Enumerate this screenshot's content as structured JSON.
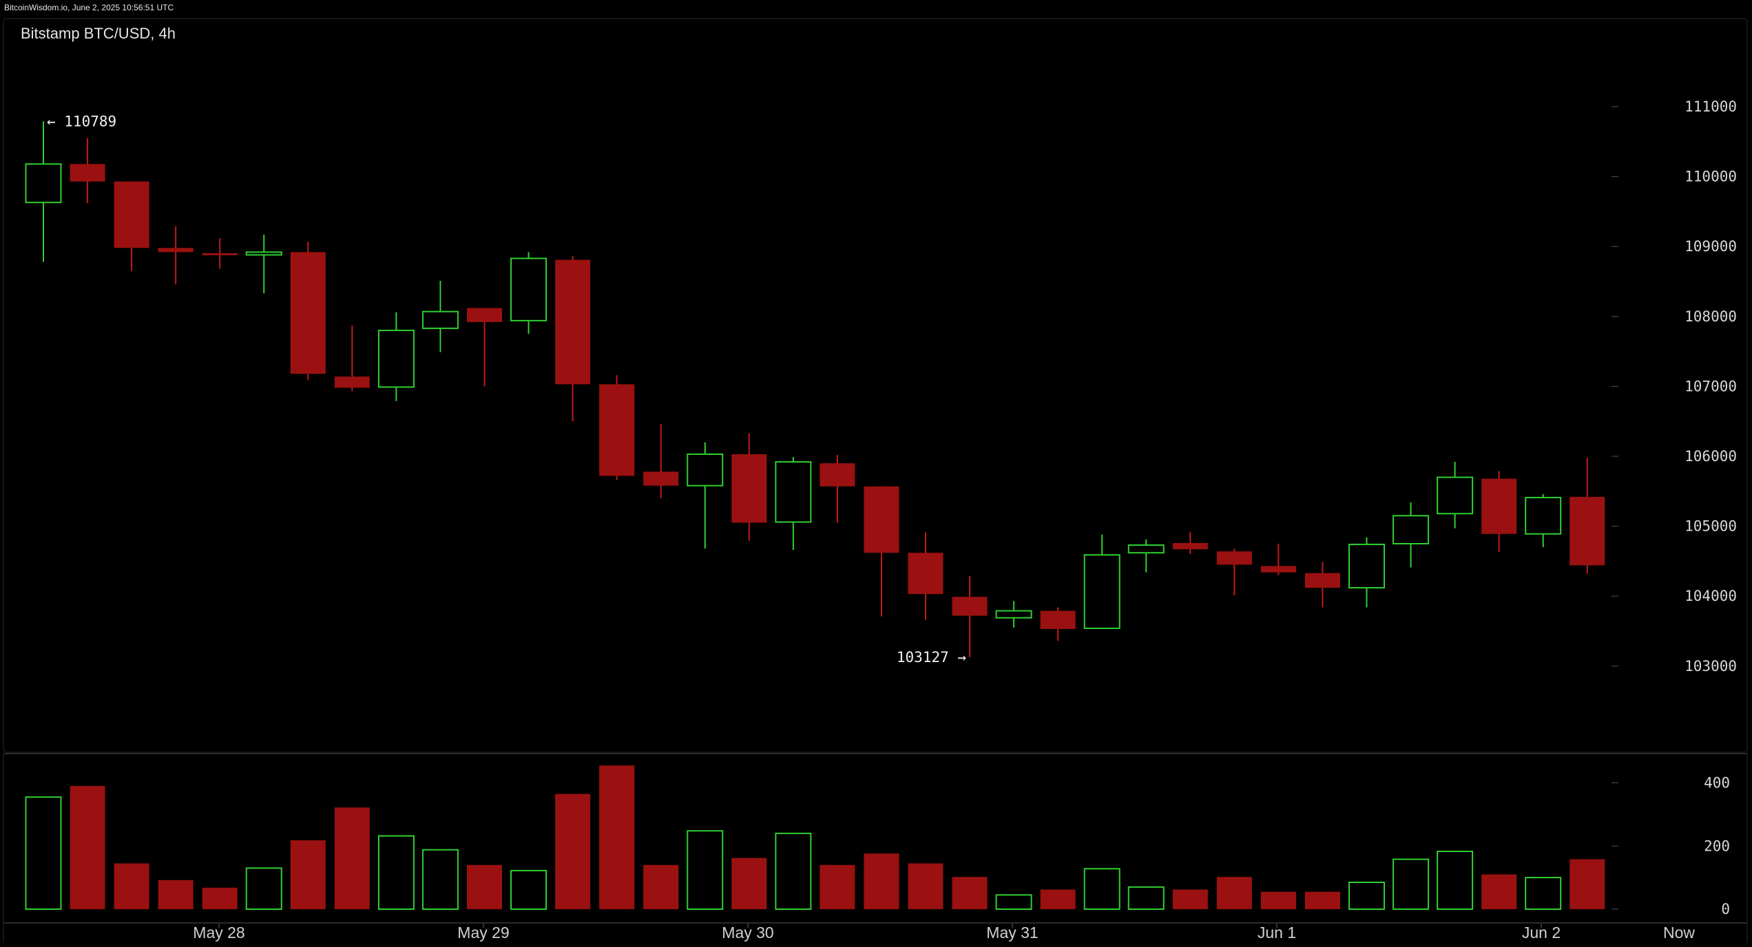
{
  "watermark": "BitcoinWisdom.io, June 2, 2025 10:56:51 UTC",
  "colors": {
    "up": "#2fd02f",
    "down_fill": "#9b1111",
    "down_wick": "#c21a1a",
    "background": "#000000",
    "text": "#d8d8d8"
  },
  "chart_data": {
    "type": "candlestick",
    "title": "Bitstamp BTC/USD, 4h",
    "interval": "4h",
    "ylim": [
      102000,
      111700
    ],
    "y_ticks": [
      103000,
      104000,
      105000,
      106000,
      107000,
      108000,
      109000,
      110000,
      111000
    ],
    "volume_ylim": [
      0,
      470
    ],
    "volume_ticks": [
      0,
      200,
      400
    ],
    "x_ticks": [
      "May 28",
      "May 29",
      "May 30",
      "May 31",
      "Jun 1",
      "Jun 2",
      "Now"
    ],
    "annotations": [
      {
        "text": "← 110789",
        "value": 110789
      },
      {
        "text": "103127 →",
        "value": 103127
      }
    ],
    "candles": [
      {
        "o": 109630,
        "h": 110789,
        "l": 108780,
        "c": 110180,
        "v": 355
      },
      {
        "o": 110180,
        "h": 110550,
        "l": 109620,
        "c": 109930,
        "v": 390
      },
      {
        "o": 109930,
        "h": 109930,
        "l": 108650,
        "c": 108980,
        "v": 145
      },
      {
        "o": 108980,
        "h": 109290,
        "l": 108460,
        "c": 108920,
        "v": 92
      },
      {
        "o": 108900,
        "h": 109120,
        "l": 108680,
        "c": 108880,
        "v": 68
      },
      {
        "o": 108880,
        "h": 109170,
        "l": 108330,
        "c": 108920,
        "v": 130
      },
      {
        "o": 108920,
        "h": 109070,
        "l": 107090,
        "c": 107180,
        "v": 218
      },
      {
        "o": 107140,
        "h": 107870,
        "l": 106930,
        "c": 106980,
        "v": 322
      },
      {
        "o": 106990,
        "h": 108060,
        "l": 106790,
        "c": 107800,
        "v": 232
      },
      {
        "o": 107830,
        "h": 108510,
        "l": 107490,
        "c": 108070,
        "v": 188
      },
      {
        "o": 108120,
        "h": 108120,
        "l": 107000,
        "c": 107920,
        "v": 140
      },
      {
        "o": 107940,
        "h": 108920,
        "l": 107750,
        "c": 108830,
        "v": 122
      },
      {
        "o": 108810,
        "h": 108860,
        "l": 106500,
        "c": 107030,
        "v": 365
      },
      {
        "o": 107030,
        "h": 107160,
        "l": 105660,
        "c": 105720,
        "v": 455
      },
      {
        "o": 105780,
        "h": 106460,
        "l": 105400,
        "c": 105580,
        "v": 140
      },
      {
        "o": 105580,
        "h": 106200,
        "l": 104680,
        "c": 106030,
        "v": 248
      },
      {
        "o": 106030,
        "h": 106330,
        "l": 104790,
        "c": 105050,
        "v": 162
      },
      {
        "o": 105060,
        "h": 105990,
        "l": 104660,
        "c": 105920,
        "v": 240
      },
      {
        "o": 105900,
        "h": 106020,
        "l": 105050,
        "c": 105570,
        "v": 140
      },
      {
        "o": 105570,
        "h": 105570,
        "l": 103710,
        "c": 104620,
        "v": 176
      },
      {
        "o": 104620,
        "h": 104910,
        "l": 103660,
        "c": 104030,
        "v": 145
      },
      {
        "o": 103990,
        "h": 104290,
        "l": 103127,
        "c": 103720,
        "v": 102
      },
      {
        "o": 103690,
        "h": 103930,
        "l": 103550,
        "c": 103790,
        "v": 45
      },
      {
        "o": 103790,
        "h": 103840,
        "l": 103360,
        "c": 103530,
        "v": 62
      },
      {
        "o": 103540,
        "h": 104880,
        "l": 103530,
        "c": 104590,
        "v": 128
      },
      {
        "o": 104620,
        "h": 104810,
        "l": 104340,
        "c": 104730,
        "v": 70
      },
      {
        "o": 104760,
        "h": 104920,
        "l": 104600,
        "c": 104670,
        "v": 62
      },
      {
        "o": 104640,
        "h": 104680,
        "l": 104010,
        "c": 104450,
        "v": 102
      },
      {
        "o": 104430,
        "h": 104750,
        "l": 104300,
        "c": 104340,
        "v": 55
      },
      {
        "o": 104330,
        "h": 104490,
        "l": 103840,
        "c": 104120,
        "v": 55
      },
      {
        "o": 104120,
        "h": 104840,
        "l": 103840,
        "c": 104740,
        "v": 85
      },
      {
        "o": 104750,
        "h": 105340,
        "l": 104410,
        "c": 105150,
        "v": 158
      },
      {
        "o": 105180,
        "h": 105920,
        "l": 104970,
        "c": 105700,
        "v": 183
      },
      {
        "o": 105680,
        "h": 105790,
        "l": 104630,
        "c": 104890,
        "v": 110
      },
      {
        "o": 104890,
        "h": 105460,
        "l": 104700,
        "c": 105410,
        "v": 100
      },
      {
        "o": 105420,
        "h": 105980,
        "l": 104320,
        "c": 104440,
        "v": 158
      }
    ]
  }
}
